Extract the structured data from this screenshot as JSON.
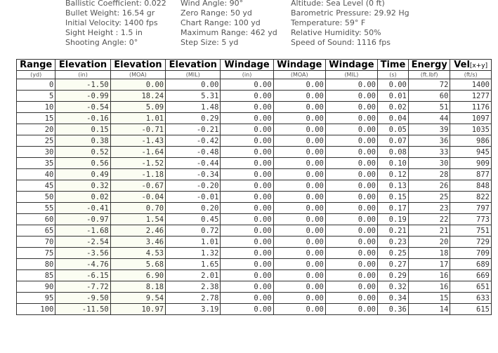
{
  "parameters": {
    "col1": [
      "Ballistic Coefficient: 0.022",
      "Bullet Weight: 16.54 gr",
      "Initial Velocity: 1400 fps",
      "Sight Height : 1.5 in",
      "Shooting Angle: 0°"
    ],
    "col2": [
      "Wind Angle: 90°",
      "Zero Range: 50 yd",
      "Chart Range: 100 yd",
      "Maximum Range: 462 yd",
      "Step Size: 5 yd"
    ],
    "col3": [
      "Altitude: Sea Level (0 ft)",
      "Barometric Pressure: 29.92 Hg",
      "Temperature: 59° F",
      "Relative Humidity: 50%",
      "Speed of Sound: 1116 fps"
    ]
  },
  "table": {
    "headers": [
      "Range",
      "Elevation",
      "Elevation",
      "Elevation",
      "Windage",
      "Windage",
      "Windage",
      "Time",
      "Energy",
      "Vel"
    ],
    "vel_subscript": "[x+y]",
    "units": [
      "(yd)",
      "(in)",
      "(MOA)",
      "(MIL)",
      "(in)",
      "(MOA)",
      "(MIL)",
      "(s)",
      "(ft.lbf)",
      "(ft/s)"
    ],
    "rows": [
      [
        "0",
        "-1.50",
        "0.00",
        "0.00",
        "0.00",
        "0.00",
        "0.00",
        "0.00",
        "72",
        "1400"
      ],
      [
        "5",
        "-0.99",
        "18.24",
        "5.31",
        "0.00",
        "0.00",
        "0.00",
        "0.01",
        "60",
        "1277"
      ],
      [
        "10",
        "-0.54",
        "5.09",
        "1.48",
        "0.00",
        "0.00",
        "0.00",
        "0.02",
        "51",
        "1176"
      ],
      [
        "15",
        "-0.16",
        "1.01",
        "0.29",
        "0.00",
        "0.00",
        "0.00",
        "0.04",
        "44",
        "1097"
      ],
      [
        "20",
        "0.15",
        "-0.71",
        "-0.21",
        "0.00",
        "0.00",
        "0.00",
        "0.05",
        "39",
        "1035"
      ],
      [
        "25",
        "0.38",
        "-1.43",
        "-0.42",
        "0.00",
        "0.00",
        "0.00",
        "0.07",
        "36",
        "986"
      ],
      [
        "30",
        "0.52",
        "-1.64",
        "-0.48",
        "0.00",
        "0.00",
        "0.00",
        "0.08",
        "33",
        "945"
      ],
      [
        "35",
        "0.56",
        "-1.52",
        "-0.44",
        "0.00",
        "0.00",
        "0.00",
        "0.10",
        "30",
        "909"
      ],
      [
        "40",
        "0.49",
        "-1.18",
        "-0.34",
        "0.00",
        "0.00",
        "0.00",
        "0.12",
        "28",
        "877"
      ],
      [
        "45",
        "0.32",
        "-0.67",
        "-0.20",
        "0.00",
        "0.00",
        "0.00",
        "0.13",
        "26",
        "848"
      ],
      [
        "50",
        "0.02",
        "-0.04",
        "-0.01",
        "0.00",
        "0.00",
        "0.00",
        "0.15",
        "25",
        "822"
      ],
      [
        "55",
        "-0.41",
        "0.70",
        "0.20",
        "0.00",
        "0.00",
        "0.00",
        "0.17",
        "23",
        "797"
      ],
      [
        "60",
        "-0.97",
        "1.54",
        "0.45",
        "0.00",
        "0.00",
        "0.00",
        "0.19",
        "22",
        "773"
      ],
      [
        "65",
        "-1.68",
        "2.46",
        "0.72",
        "0.00",
        "0.00",
        "0.00",
        "0.21",
        "21",
        "751"
      ],
      [
        "70",
        "-2.54",
        "3.46",
        "1.01",
        "0.00",
        "0.00",
        "0.00",
        "0.23",
        "20",
        "729"
      ],
      [
        "75",
        "-3.56",
        "4.53",
        "1.32",
        "0.00",
        "0.00",
        "0.00",
        "0.25",
        "18",
        "709"
      ],
      [
        "80",
        "-4.76",
        "5.68",
        "1.65",
        "0.00",
        "0.00",
        "0.00",
        "0.27",
        "17",
        "689"
      ],
      [
        "85",
        "-6.15",
        "6.90",
        "2.01",
        "0.00",
        "0.00",
        "0.00",
        "0.29",
        "16",
        "669"
      ],
      [
        "90",
        "-7.72",
        "8.18",
        "2.38",
        "0.00",
        "0.00",
        "0.00",
        "0.32",
        "16",
        "651"
      ],
      [
        "95",
        "-9.50",
        "9.54",
        "2.78",
        "0.00",
        "0.00",
        "0.00",
        "0.34",
        "15",
        "633"
      ],
      [
        "100",
        "-11.50",
        "10.97",
        "3.19",
        "0.00",
        "0.00",
        "0.00",
        "0.36",
        "14",
        "615"
      ]
    ]
  }
}
